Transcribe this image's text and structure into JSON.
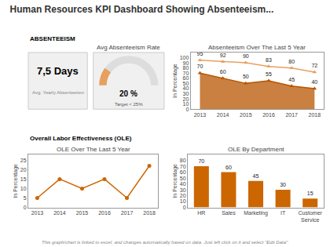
{
  "title": "Human Resources KPI Dashboard Showing Absenteeism...",
  "annotations": [
    "ABSENTEEISM",
    "Overall Labor Effectiveness (OLE)",
    "This graph/chart is linked to excel, and changes automatically based on data. Just left click on it and select \"Edit Data\"."
  ],
  "chart_data": [
    {
      "type": "kpi",
      "title": "Avg. Yearly Absenteeism",
      "values": [
        7.5
      ],
      "value_labels": [
        "7,5 Days"
      ]
    },
    {
      "type": "gauge",
      "title": "Avg Absenteeism Rate",
      "values": [
        20
      ],
      "value_labels": [
        "20 %"
      ],
      "annotations": [
        "Target < 25%"
      ],
      "ylim": [
        0,
        100
      ],
      "tick_labels": false,
      "color": "#e8a060"
    },
    {
      "type": "line",
      "title": "Absenteeism Over The Last 5 Year",
      "x": [
        2013,
        2014,
        2015,
        2016,
        2017,
        2018
      ],
      "series": [
        {
          "values": [
            95,
            92,
            90,
            83,
            80,
            72
          ],
          "color": "#e8a060",
          "marker": "triangle-up"
        },
        {
          "type": "area",
          "values": [
            70,
            60,
            50,
            55,
            45,
            40
          ],
          "color": "#b85500",
          "marker": "triangle-up"
        }
      ],
      "xlim": [
        2012.6,
        2018.4
      ],
      "xticks": [
        2013,
        2014,
        2015,
        2016,
        2017,
        2018
      ],
      "ylim": [
        0,
        110
      ],
      "yticks": [
        0,
        10,
        20,
        30,
        40,
        50,
        60,
        70,
        80,
        90,
        100
      ],
      "ylabel": "In Percentage",
      "data_labels": true,
      "grid": false
    },
    {
      "type": "line",
      "title": "OLE Over The Last 5 Year",
      "x": [
        2013,
        2014,
        2015,
        2016,
        2017,
        2018
      ],
      "series": [
        {
          "values": [
            5,
            15,
            10,
            15,
            5,
            22
          ],
          "color": "#cc6600",
          "marker": "circle"
        }
      ],
      "xlim": [
        2012.6,
        2018.4
      ],
      "xticks": [
        2013,
        2014,
        2015,
        2016,
        2017,
        2018
      ],
      "ylim": [
        0,
        28
      ],
      "yticks": [
        0,
        5,
        10,
        15,
        20,
        25
      ],
      "ylabel": "In Percentage",
      "grid": false
    },
    {
      "type": "bar",
      "title": "OLE By Department",
      "categories": [
        "HR",
        "Sales",
        "Marketing",
        "IT",
        "Customer\nService"
      ],
      "values": [
        70,
        60,
        45,
        30,
        15
      ],
      "color": "#cc6600",
      "ylim": [
        0,
        90
      ],
      "yticks": [
        0,
        10,
        20,
        30,
        40,
        50,
        60,
        70,
        80
      ],
      "ylabel": "In Percentage",
      "data_labels": true,
      "grid": false
    }
  ]
}
